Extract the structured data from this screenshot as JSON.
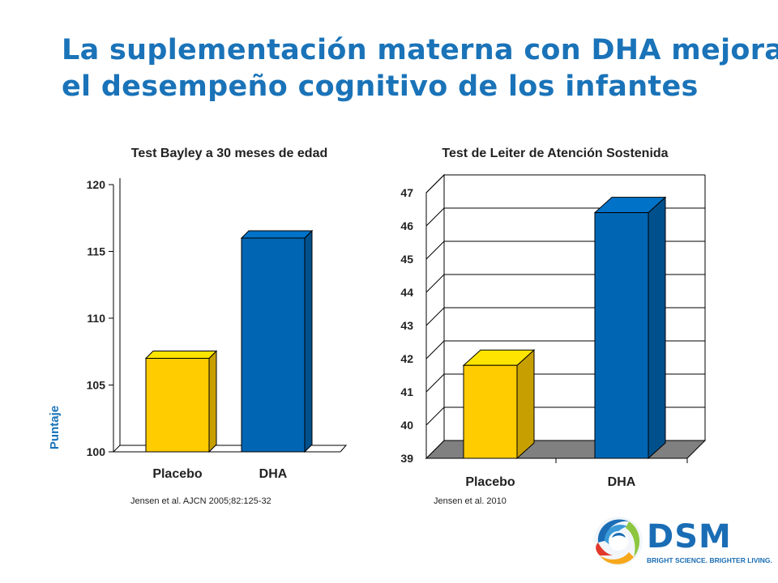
{
  "title": {
    "line1": "La suplementación materna con DHA mejora",
    "line2": "el desempeño cognitivo de los infantes"
  },
  "chart_data": [
    {
      "type": "bar",
      "title": "Test Bayley a 30 meses de edad",
      "ylabel": "Puntaje",
      "xlabel": "",
      "categories": [
        "Placebo",
        "DHA"
      ],
      "values": [
        107,
        116
      ],
      "ylim": [
        100,
        120
      ],
      "yticks": [
        "100",
        "105",
        "110",
        "115",
        "120"
      ],
      "grid": false,
      "colors": [
        "#ffcc00",
        "#0066b3"
      ],
      "reference": "Jensen et al. AJCN 2005;82:125-32"
    },
    {
      "type": "bar",
      "title": "Test de Leiter de Atención Sostenida",
      "ylabel": "",
      "xlabel": "",
      "categories": [
        "Placebo",
        "DHA"
      ],
      "values": [
        41.8,
        46.4
      ],
      "ylim": [
        39,
        47
      ],
      "yticks": [
        "39",
        "40",
        "41",
        "42",
        "43",
        "44",
        "45",
        "46",
        "47"
      ],
      "grid": true,
      "colors": [
        "#ffcc00",
        "#0066b3"
      ],
      "reference": "Jensen et al. 2010"
    }
  ],
  "logo": {
    "name": "DSM",
    "tagline": "BRIGHT SCIENCE. BRIGHTER LIVING.",
    "icon": "dsm-swirl-logo",
    "color": "#1a6db5"
  }
}
